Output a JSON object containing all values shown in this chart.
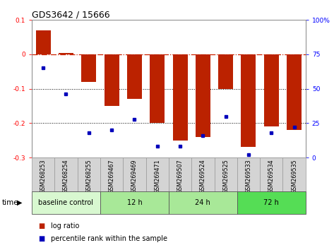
{
  "title": "GDS3642 / 15666",
  "samples": [
    "GSM268253",
    "GSM268254",
    "GSM268255",
    "GSM269467",
    "GSM269469",
    "GSM269471",
    "GSM269507",
    "GSM269524",
    "GSM269525",
    "GSM269533",
    "GSM269534",
    "GSM269535"
  ],
  "log_ratio": [
    0.07,
    0.005,
    -0.08,
    -0.15,
    -0.13,
    -0.2,
    -0.25,
    -0.24,
    -0.1,
    -0.27,
    -0.21,
    -0.22
  ],
  "percentile_rank": [
    65,
    46,
    18,
    20,
    28,
    8,
    8,
    16,
    30,
    2,
    18,
    22
  ],
  "ylim_left": [
    -0.3,
    0.1
  ],
  "bar_color": "#bb2200",
  "dot_color": "#0000bb",
  "hline_color": "#cc2200",
  "groups": [
    {
      "label": "baseline control",
      "start": 0,
      "end": 3,
      "color": "#d8f8d0"
    },
    {
      "label": "12 h",
      "start": 3,
      "end": 6,
      "color": "#a8e898"
    },
    {
      "label": "24 h",
      "start": 6,
      "end": 9,
      "color": "#a8e898"
    },
    {
      "label": "72 h",
      "start": 9,
      "end": 12,
      "color": "#55dd55"
    }
  ],
  "dotted_lines": [
    -0.1,
    -0.2
  ],
  "right_ticks": [
    0,
    25,
    50,
    75,
    100
  ],
  "right_tick_labels": [
    "0",
    "25",
    "50",
    "75",
    "100%"
  ],
  "left_ticks": [
    -0.3,
    -0.2,
    -0.1,
    0.0,
    0.1
  ],
  "left_tick_labels": [
    "-0.3",
    "-0.2",
    "-0.1",
    "0",
    "0.1"
  ]
}
